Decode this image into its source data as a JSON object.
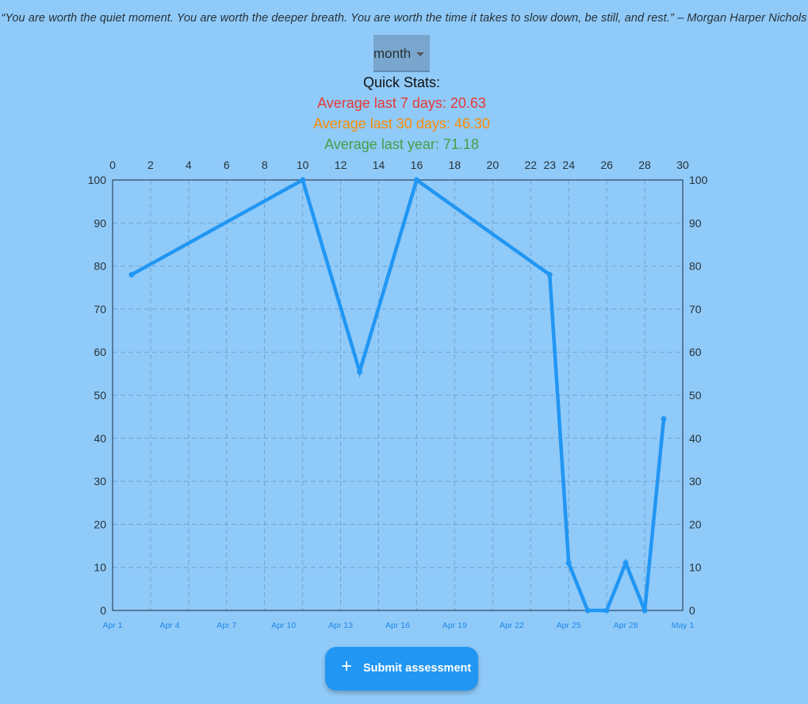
{
  "quote": "“You are worth the quiet moment. You are worth the deeper breath. You are worth the time it takes to slow down, be still, and rest.” – Morgan Harper Nichols",
  "range_selector": {
    "value": "month",
    "icon": "chevron-down-icon"
  },
  "stats": {
    "title": "Quick Stats:",
    "avg7": "Average last 7 days: 20.63",
    "avg30": "Average last 30 days: 46.30",
    "avg_year": "Average last year: 71.18"
  },
  "colors": {
    "background": "#90caf9",
    "line": "#2196f3",
    "avg7": "#e53935",
    "avg30": "#fb8c00",
    "avg_year": "#43a047"
  },
  "submit_button": {
    "label": "Submit assessment",
    "icon": "plus-icon"
  },
  "chart_data": {
    "type": "line",
    "x_top_ticks": [
      "0",
      "2",
      "4",
      "6",
      "8",
      "10",
      "12",
      "14",
      "16",
      "18",
      "20",
      "22",
      "23",
      "24",
      "26",
      "28",
      "30"
    ],
    "x_bottom_ticks": [
      "Apr 1",
      "Apr 4",
      "Apr 7",
      "Apr 10",
      "Apr 13",
      "Apr 16",
      "Apr 19",
      "Apr 22",
      "Apr 25",
      "Apr 28",
      "May 1"
    ],
    "ylim": [
      0,
      100
    ],
    "y_ticks": [
      "0",
      "10",
      "20",
      "30",
      "40",
      "50",
      "60",
      "70",
      "80",
      "90",
      "100"
    ],
    "grid": true,
    "series": [
      {
        "x": [
          "Apr 2",
          "Apr 11",
          "Apr 14",
          "Apr 17",
          "Apr 24",
          "Apr 25",
          "Apr 26",
          "Apr 27",
          "Apr 28",
          "Apr 29",
          "Apr 30"
        ],
        "y": [
          78,
          100,
          55.5,
          100,
          78,
          11,
          0,
          0,
          11,
          0,
          44.5
        ]
      }
    ]
  }
}
